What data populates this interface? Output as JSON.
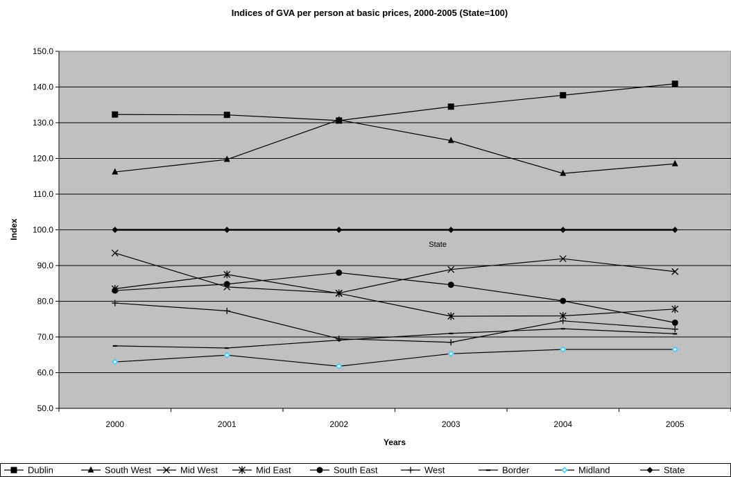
{
  "chart_data": {
    "type": "line",
    "title": "Indices of GVA per person at basic prices, 2000-2005 (State=100)",
    "xlabel": "Years",
    "ylabel": "Index",
    "categories": [
      "2000",
      "2001",
      "2002",
      "2003",
      "2004",
      "2005"
    ],
    "ylim": [
      50,
      150
    ],
    "yticks": [
      "50.0",
      "60.0",
      "70.0",
      "80.0",
      "90.0",
      "100.0",
      "110.0",
      "120.0",
      "130.0",
      "140.0",
      "150.0"
    ],
    "grid": true,
    "legend_position": "bottom",
    "plot_background": "#c0c0c0",
    "annotations": [
      {
        "text": "State",
        "x": "2003",
        "y": 96
      }
    ],
    "series": [
      {
        "name": "Dublin",
        "marker": "square",
        "color": "#000000",
        "values": [
          132.3,
          132.2,
          130.6,
          134.5,
          137.7,
          140.9
        ]
      },
      {
        "name": "South West",
        "marker": "triangle",
        "color": "#000000",
        "values": [
          116.2,
          119.7,
          130.8,
          125.0,
          115.8,
          118.5
        ]
      },
      {
        "name": "Mid West",
        "marker": "x",
        "color": "#000000",
        "values": [
          93.5,
          84.0,
          82.3,
          88.9,
          91.9,
          88.3
        ]
      },
      {
        "name": "Mid East",
        "marker": "star",
        "color": "#000000",
        "values": [
          83.5,
          87.5,
          82.2,
          75.8,
          75.9,
          77.8
        ]
      },
      {
        "name": "South East",
        "marker": "circle",
        "color": "#000000",
        "values": [
          83.0,
          84.8,
          88.0,
          84.6,
          80.1,
          74.0
        ]
      },
      {
        "name": "West",
        "marker": "plus",
        "color": "#000000",
        "values": [
          79.5,
          77.3,
          69.5,
          68.5,
          74.5,
          72.2
        ]
      },
      {
        "name": "Border",
        "marker": "dash",
        "color": "#000000",
        "values": [
          67.5,
          66.9,
          69.1,
          71.0,
          72.3,
          70.9
        ]
      },
      {
        "name": "Midland",
        "marker": "diamond-open",
        "color": "#33ccff",
        "values": [
          63.0,
          64.9,
          61.8,
          65.3,
          66.5,
          66.5
        ]
      },
      {
        "name": "State",
        "marker": "diamond",
        "color": "#000000",
        "values": [
          100,
          100,
          100,
          100,
          100,
          100
        ]
      }
    ]
  }
}
